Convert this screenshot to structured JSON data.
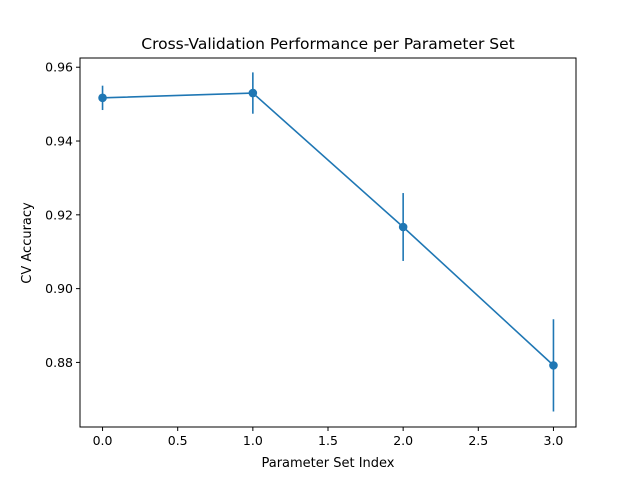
{
  "chart_data": {
    "type": "line",
    "title": "Cross-Validation Performance per Parameter Set",
    "xlabel": "Parameter Set Index",
    "ylabel": "CV Accuracy",
    "xlim": [
      -0.15,
      3.15
    ],
    "ylim": [
      0.8625,
      0.9625
    ],
    "x_ticks": [
      0.0,
      0.5,
      1.0,
      1.5,
      2.0,
      2.5,
      3.0
    ],
    "x_tick_labels": [
      "0.0",
      "0.5",
      "1.0",
      "1.5",
      "2.0",
      "2.5",
      "3.0"
    ],
    "y_ticks": [
      0.88,
      0.9,
      0.92,
      0.94,
      0.96
    ],
    "y_tick_labels": [
      "0.88",
      "0.90",
      "0.92",
      "0.94",
      "0.96"
    ],
    "grid": false,
    "legend": "none",
    "series": [
      {
        "color": "#1f77b4",
        "marker": "circle",
        "x": [
          0,
          1,
          2,
          3
        ],
        "y": [
          0.9517,
          0.953,
          0.9167,
          0.8792
        ],
        "error": [
          0.0033,
          0.0056,
          0.0092,
          0.0125
        ]
      }
    ]
  }
}
